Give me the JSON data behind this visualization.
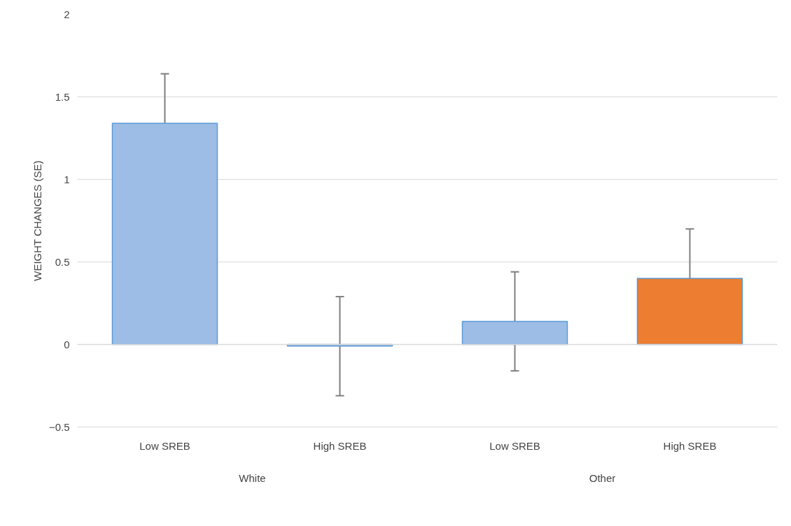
{
  "chart_data": {
    "type": "bar",
    "ylabel": "WEIGHT CHANGES (SE)",
    "categories": [
      "Low SREB",
      "High SREB",
      "Low SREB",
      "High SREB"
    ],
    "values": [
      1.34,
      -0.01,
      0.14,
      0.4
    ],
    "errors": [
      0.3,
      0.3,
      0.3,
      0.3
    ],
    "colors": [
      "#9dbde6",
      "#9dbde6",
      "#9dbde6",
      "#ed7d31"
    ],
    "ylim": [
      -0.5,
      2
    ],
    "yticks": [
      -0.5,
      0,
      0.5,
      1,
      1.5,
      2
    ],
    "grid": "y",
    "annotations": [
      "White",
      "Other"
    ]
  }
}
